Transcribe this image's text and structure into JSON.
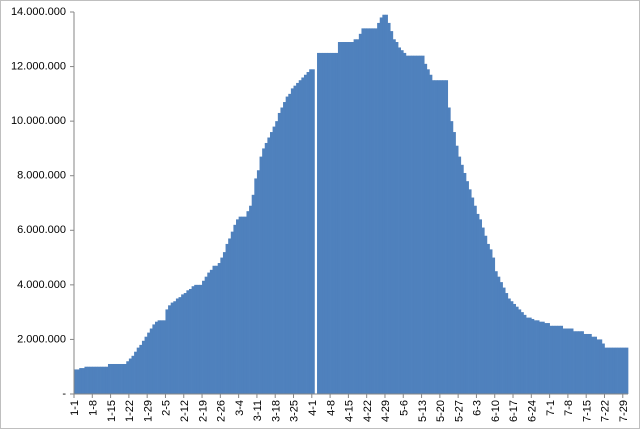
{
  "chart_data": {
    "type": "bar",
    "color": "#4f81bd",
    "grid": false,
    "categories": [
      "1-1",
      null,
      null,
      null,
      null,
      null,
      null,
      "1-8",
      null,
      null,
      null,
      null,
      null,
      null,
      "1-15",
      null,
      null,
      null,
      null,
      null,
      null,
      "1-22",
      null,
      null,
      null,
      null,
      null,
      null,
      "1-29",
      null,
      null,
      null,
      null,
      null,
      null,
      "2-5",
      null,
      null,
      null,
      null,
      null,
      null,
      "2-12",
      null,
      null,
      null,
      null,
      null,
      null,
      "2-19",
      null,
      null,
      null,
      null,
      null,
      null,
      "2-26",
      null,
      null,
      null,
      null,
      null,
      null,
      "3-4",
      null,
      null,
      null,
      null,
      null,
      null,
      "3-11",
      null,
      null,
      null,
      null,
      null,
      null,
      "3-18",
      null,
      null,
      null,
      null,
      null,
      null,
      "3-25",
      null,
      null,
      null,
      null,
      null,
      null,
      "4-1",
      null,
      null,
      null,
      null,
      null,
      null,
      "4-8",
      null,
      null,
      null,
      null,
      null,
      null,
      "4-15",
      null,
      null,
      null,
      null,
      null,
      null,
      "4-22",
      null,
      null,
      null,
      null,
      null,
      null,
      "4-29",
      null,
      null,
      null,
      null,
      null,
      null,
      "5-6",
      null,
      null,
      null,
      null,
      null,
      null,
      "5-13",
      null,
      null,
      null,
      null,
      null,
      null,
      "5-20",
      null,
      null,
      null,
      null,
      null,
      null,
      "5-27",
      null,
      null,
      null,
      null,
      null,
      null,
      "6-3",
      null,
      null,
      null,
      null,
      null,
      null,
      "6-10",
      null,
      null,
      null,
      null,
      null,
      null,
      "6-17",
      null,
      null,
      null,
      null,
      null,
      null,
      "6-24",
      null,
      null,
      null,
      null,
      null,
      null,
      "7-1",
      null,
      null,
      null,
      null,
      null,
      null,
      "7-8",
      null,
      null,
      null,
      null,
      null,
      null,
      "7-15",
      null,
      null,
      null,
      null,
      null,
      null,
      "7-22",
      null,
      null,
      null,
      null,
      null,
      null,
      "7-29",
      null
    ],
    "values": [
      900000,
      900000,
      950000,
      950000,
      1000000,
      1000000,
      1000000,
      1000000,
      1000000,
      1000000,
      1000000,
      1000000,
      1000000,
      1100000,
      1100000,
      1100000,
      1100000,
      1100000,
      1100000,
      1100000,
      1200000,
      1300000,
      1400000,
      1550000,
      1700000,
      1800000,
      1950000,
      2100000,
      2250000,
      2400000,
      2550000,
      2650000,
      2700000,
      2700000,
      2700000,
      3100000,
      3250000,
      3350000,
      3400000,
      3500000,
      3550000,
      3650000,
      3700000,
      3800000,
      3850000,
      3950000,
      4000000,
      4000000,
      4000000,
      4150000,
      4300000,
      4450000,
      4550000,
      4700000,
      4700000,
      4800000,
      5000000,
      5200000,
      5500000,
      5700000,
      5950000,
      6200000,
      6400000,
      6500000,
      6500000,
      6500000,
      6700000,
      6900000,
      7300000,
      7900000,
      8200000,
      8700000,
      9000000,
      9200000,
      9400000,
      9600000,
      9800000,
      10000000,
      10300000,
      10500000,
      10700000,
      10900000,
      11000000,
      11200000,
      11300000,
      11400000,
      11500000,
      11600000,
      11700000,
      11800000,
      11900000,
      11900000,
      null,
      12500000,
      12500000,
      12500000,
      12500000,
      12500000,
      12500000,
      12500000,
      12500000,
      12900000,
      12900000,
      12900000,
      12900000,
      12900000,
      12900000,
      13000000,
      13000000,
      13200000,
      13400000,
      13400000,
      13400000,
      13400000,
      13400000,
      13400000,
      13600000,
      13800000,
      13900000,
      13900000,
      13600000,
      13300000,
      13000000,
      12900000,
      12700000,
      12600000,
      12500000,
      12400000,
      12400000,
      12400000,
      12400000,
      12400000,
      12400000,
      12400000,
      12100000,
      11900000,
      11700000,
      11500000,
      11500000,
      11500000,
      11500000,
      11500000,
      11500000,
      10500000,
      10000000,
      9600000,
      9100000,
      8700000,
      8400000,
      8100000,
      7800000,
      7500000,
      7200000,
      6900000,
      6600000,
      6400000,
      6100000,
      5800000,
      5500000,
      5300000,
      5000000,
      4500000,
      4300000,
      4100000,
      3900000,
      3700000,
      3500000,
      3400000,
      3300000,
      3200000,
      3100000,
      3000000,
      2900000,
      2800000,
      2800000,
      2750000,
      2700000,
      2700000,
      2650000,
      2650000,
      2600000,
      2600000,
      2500000,
      2500000,
      2500000,
      2500000,
      2500000,
      2400000,
      2400000,
      2400000,
      2400000,
      2300000,
      2300000,
      2300000,
      2300000,
      2200000,
      2200000,
      2200000,
      2100000,
      2100000,
      2000000,
      2000000,
      1850000,
      1700000,
      1700000,
      1700000,
      1700000,
      1700000,
      1700000,
      1700000,
      1700000,
      1700000
    ],
    "ylim": [
      0,
      14000000
    ],
    "yticks": [
      {
        "value": 0,
        "label": "-"
      },
      {
        "value": 2000000,
        "label": "2.000.000"
      },
      {
        "value": 4000000,
        "label": "4.000.000"
      },
      {
        "value": 6000000,
        "label": "6.000.000"
      },
      {
        "value": 8000000,
        "label": "8.000.000"
      },
      {
        "value": 10000000,
        "label": "10.000.000"
      },
      {
        "value": 12000000,
        "label": "12.000.000"
      },
      {
        "value": 14000000,
        "label": "14.000.000"
      }
    ]
  }
}
